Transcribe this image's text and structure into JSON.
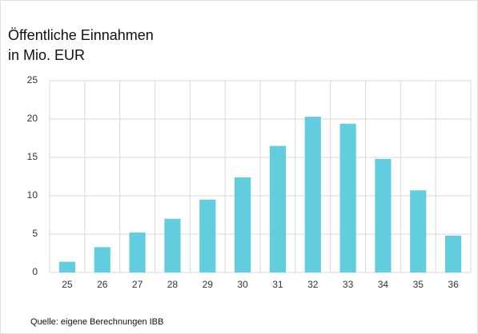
{
  "chart_data": {
    "type": "bar",
    "title": "Öffentliche Einnahmen",
    "subtitle": "in Mio. EUR",
    "source": "Quelle: eigene Berechnungen IBB",
    "categories": [
      "25",
      "26",
      "27",
      "28",
      "29",
      "30",
      "31",
      "32",
      "33",
      "34",
      "35",
      "36"
    ],
    "values": [
      1.4,
      3.3,
      5.2,
      7.0,
      9.5,
      12.4,
      16.5,
      20.3,
      19.4,
      14.8,
      10.7,
      4.8
    ],
    "color": "#63cde0",
    "ylim": [
      0,
      25
    ],
    "yticks": [
      0,
      5,
      10,
      15,
      20,
      25
    ],
    "grid": true
  }
}
